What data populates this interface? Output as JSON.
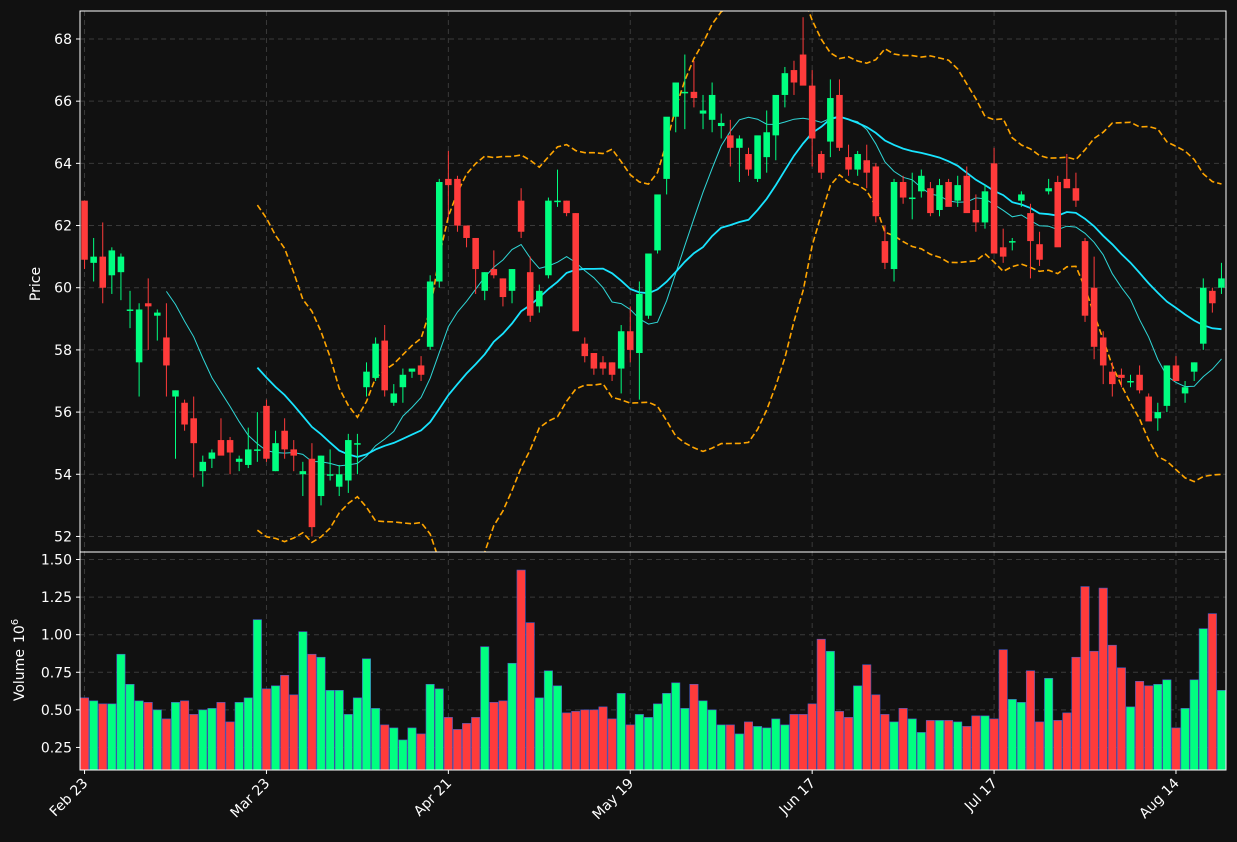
{
  "colors": {
    "background": "#111111",
    "up": "#00ff80",
    "down": "#ff3b3b",
    "vol_edge": "#4a5cc7",
    "ma_fast": "#2fd6d6",
    "ma_slow": "#18e4ff",
    "bollinger": "#ffa500",
    "frame": "#ffffff"
  },
  "chart_data": {
    "type": "candlestick",
    "ylabel": "Price",
    "volume_ylabel": "Volume",
    "volume_exponent": "6",
    "ylim": [
      51.5,
      68.9
    ],
    "yticks": [
      "52",
      "54",
      "56",
      "58",
      "60",
      "62",
      "64",
      "66",
      "68"
    ],
    "volume_ylim": [
      0.1,
      1.55
    ],
    "volume_yticks": [
      "0.25",
      "0.50",
      "0.75",
      "1.00",
      "1.25",
      "1.50"
    ],
    "xtick_labels": [
      "Feb 23",
      "Mar 23",
      "Apr 21",
      "May 19",
      "Jun 17",
      "Jul 17",
      "Aug 14"
    ],
    "xtick_index": [
      0,
      20,
      40,
      60,
      80,
      100,
      120
    ],
    "ohlcv": [
      [
        62.8,
        62.8,
        60.6,
        60.9,
        0.58
      ],
      [
        60.8,
        61.6,
        60.2,
        61.0,
        0.56
      ],
      [
        61.0,
        62.1,
        59.5,
        60.0,
        0.54
      ],
      [
        60.4,
        61.3,
        59.8,
        61.2,
        0.54
      ],
      [
        60.5,
        61.1,
        59.6,
        61.0,
        0.87
      ],
      [
        59.3,
        59.9,
        58.7,
        59.3,
        0.67
      ],
      [
        57.6,
        59.5,
        56.5,
        59.3,
        0.56
      ],
      [
        59.5,
        60.3,
        58.0,
        59.4,
        0.55
      ],
      [
        59.1,
        59.3,
        58.3,
        59.2,
        0.5
      ],
      [
        58.4,
        59.5,
        56.5,
        57.5,
        0.44
      ],
      [
        56.5,
        56.7,
        54.5,
        56.7,
        0.55
      ],
      [
        56.3,
        56.4,
        55.4,
        55.6,
        0.56
      ],
      [
        55.8,
        56.5,
        53.9,
        55.0,
        0.47
      ],
      [
        54.1,
        54.6,
        53.6,
        54.4,
        0.5
      ],
      [
        54.5,
        54.8,
        54.2,
        54.7,
        0.51
      ],
      [
        55.1,
        55.8,
        54.8,
        54.6,
        0.55
      ],
      [
        55.1,
        55.2,
        54.0,
        54.7,
        0.42
      ],
      [
        54.4,
        54.6,
        54.1,
        54.5,
        0.55
      ],
      [
        54.3,
        55.5,
        54.2,
        54.8,
        0.58
      ],
      [
        54.8,
        56.0,
        54.4,
        54.8,
        1.1
      ],
      [
        56.2,
        56.4,
        54.4,
        54.5,
        0.64
      ],
      [
        54.1,
        55.4,
        54.1,
        55.0,
        0.66
      ],
      [
        55.4,
        55.8,
        54.5,
        54.8,
        0.73
      ],
      [
        54.8,
        55.1,
        54.1,
        54.6,
        0.6
      ],
      [
        54.0,
        54.4,
        53.3,
        54.1,
        1.02
      ],
      [
        54.5,
        55.0,
        52.0,
        52.3,
        0.87
      ],
      [
        53.3,
        54.6,
        53.0,
        54.6,
        0.85
      ],
      [
        54.0,
        54.8,
        53.8,
        54.0,
        0.63
      ],
      [
        53.6,
        54.3,
        53.3,
        54.0,
        0.63
      ],
      [
        53.8,
        55.3,
        53.4,
        55.1,
        0.47
      ],
      [
        55.0,
        55.3,
        54.0,
        55.0,
        0.58
      ],
      [
        56.8,
        57.6,
        56.5,
        57.3,
        0.84
      ],
      [
        57.1,
        58.4,
        57.0,
        58.2,
        0.51
      ],
      [
        58.3,
        58.8,
        56.5,
        56.7,
        0.4
      ],
      [
        56.3,
        56.9,
        56.2,
        56.6,
        0.38
      ],
      [
        56.8,
        57.4,
        56.3,
        57.2,
        0.3
      ],
      [
        57.3,
        57.4,
        57.1,
        57.4,
        0.38
      ],
      [
        57.5,
        57.8,
        57.0,
        57.2,
        0.34
      ],
      [
        58.1,
        60.4,
        58.0,
        60.2,
        0.67
      ],
      [
        60.2,
        63.5,
        60.0,
        63.4,
        0.64
      ],
      [
        63.5,
        64.4,
        62.2,
        63.3,
        0.45
      ],
      [
        63.5,
        63.6,
        61.8,
        62.0,
        0.37
      ],
      [
        62.0,
        62.0,
        61.3,
        61.6,
        0.41
      ],
      [
        61.6,
        61.6,
        59.8,
        60.6,
        0.45
      ],
      [
        59.9,
        60.5,
        59.6,
        60.5,
        0.92
      ],
      [
        60.6,
        61.2,
        60.3,
        60.4,
        0.55
      ],
      [
        60.3,
        60.3,
        59.4,
        59.7,
        0.56
      ],
      [
        59.9,
        60.6,
        59.5,
        60.6,
        0.81
      ],
      [
        62.8,
        63.2,
        61.6,
        61.8,
        1.43
      ],
      [
        60.5,
        61.0,
        58.9,
        59.1,
        1.08
      ],
      [
        59.4,
        60.1,
        59.2,
        59.9,
        0.58
      ],
      [
        60.4,
        62.9,
        60.3,
        62.8,
        0.76
      ],
      [
        62.8,
        63.8,
        62.6,
        62.8,
        0.66
      ],
      [
        62.8,
        62.8,
        62.3,
        62.4,
        0.48
      ],
      [
        62.4,
        62.4,
        58.6,
        58.6,
        0.49
      ],
      [
        58.2,
        58.4,
        57.6,
        57.8,
        0.5
      ],
      [
        57.9,
        57.9,
        57.2,
        57.4,
        0.5
      ],
      [
        57.6,
        57.8,
        57.2,
        57.4,
        0.52
      ],
      [
        57.6,
        57.6,
        57.0,
        57.2,
        0.44
      ],
      [
        57.4,
        58.8,
        56.6,
        58.6,
        0.61
      ],
      [
        58.6,
        59.4,
        57.6,
        58.0,
        0.4
      ],
      [
        57.9,
        60.2,
        56.4,
        59.8,
        0.47
      ],
      [
        59.1,
        60.3,
        59.0,
        61.1,
        0.45
      ],
      [
        61.2,
        62.4,
        61.1,
        63.0,
        0.54
      ],
      [
        63.5,
        64.8,
        63.0,
        65.5,
        0.61
      ],
      [
        65.5,
        66.5,
        65.0,
        66.6,
        0.68
      ],
      [
        66.3,
        67.5,
        65.1,
        66.3,
        0.51
      ],
      [
        66.3,
        67.3,
        65.8,
        66.1,
        0.67
      ],
      [
        65.6,
        66.2,
        65.1,
        65.7,
        0.56
      ],
      [
        65.4,
        66.6,
        65.0,
        66.2,
        0.5
      ],
      [
        65.2,
        65.6,
        64.8,
        65.3,
        0.4
      ],
      [
        64.9,
        65.4,
        63.9,
        64.5,
        0.4
      ],
      [
        64.5,
        64.9,
        63.4,
        64.8,
        0.34
      ],
      [
        64.3,
        64.5,
        63.6,
        63.8,
        0.42
      ],
      [
        63.5,
        64.8,
        63.4,
        64.9,
        0.39
      ],
      [
        64.2,
        65.7,
        63.7,
        65.0,
        0.38
      ],
      [
        64.9,
        66.1,
        64.1,
        66.2,
        0.44
      ],
      [
        66.2,
        67.1,
        65.8,
        66.9,
        0.4
      ],
      [
        67.0,
        67.3,
        66.2,
        66.6,
        0.47
      ],
      [
        67.5,
        68.7,
        67.1,
        66.5,
        0.47
      ],
      [
        66.5,
        67.0,
        63.9,
        64.8,
        0.54
      ],
      [
        64.3,
        64.4,
        63.5,
        63.7,
        0.97
      ],
      [
        64.7,
        66.7,
        64.2,
        66.1,
        0.89
      ],
      [
        66.2,
        66.7,
        64.4,
        64.5,
        0.49
      ],
      [
        64.2,
        64.6,
        63.6,
        63.8,
        0.45
      ],
      [
        63.8,
        64.4,
        63.6,
        64.3,
        0.66
      ],
      [
        64.1,
        64.6,
        63.2,
        63.7,
        0.8
      ],
      [
        63.9,
        64.0,
        62.1,
        62.3,
        0.6
      ],
      [
        61.5,
        62.0,
        60.6,
        60.8,
        0.47
      ],
      [
        60.6,
        63.5,
        60.2,
        63.4,
        0.42
      ],
      [
        63.4,
        63.6,
        62.7,
        62.9,
        0.51
      ],
      [
        62.9,
        63.7,
        62.2,
        62.9,
        0.44
      ],
      [
        63.1,
        63.8,
        62.9,
        63.6,
        0.35
      ],
      [
        63.2,
        63.4,
        62.3,
        62.4,
        0.43
      ],
      [
        62.5,
        63.5,
        62.3,
        63.3,
        0.43
      ],
      [
        63.4,
        63.5,
        62.9,
        62.6,
        0.43
      ],
      [
        62.8,
        63.6,
        62.6,
        63.3,
        0.42
      ],
      [
        63.6,
        63.9,
        63.0,
        62.4,
        0.39
      ],
      [
        62.5,
        63.0,
        61.8,
        62.1,
        0.46
      ],
      [
        62.1,
        63.3,
        61.9,
        63.1,
        0.46
      ],
      [
        64.0,
        64.5,
        61.3,
        61.1,
        0.44
      ],
      [
        61.3,
        61.9,
        60.8,
        61.0,
        0.9
      ],
      [
        61.5,
        61.6,
        61.2,
        61.5,
        0.57
      ],
      [
        62.8,
        63.1,
        62.6,
        63.0,
        0.55
      ],
      [
        62.4,
        62.7,
        60.3,
        61.5,
        0.76
      ],
      [
        61.4,
        61.8,
        60.7,
        60.9,
        0.42
      ],
      [
        63.1,
        63.5,
        63.0,
        63.2,
        0.71
      ],
      [
        63.4,
        63.6,
        61.6,
        61.3,
        0.43
      ],
      [
        63.5,
        64.3,
        63.3,
        63.2,
        0.48
      ],
      [
        63.2,
        63.7,
        62.6,
        62.8,
        0.85
      ],
      [
        61.5,
        61.6,
        58.9,
        59.1,
        1.32
      ],
      [
        60.0,
        61.0,
        57.7,
        58.1,
        0.89
      ],
      [
        58.4,
        58.6,
        56.9,
        57.5,
        1.31
      ],
      [
        57.3,
        57.6,
        56.5,
        56.9,
        0.93
      ],
      [
        57.2,
        57.4,
        56.8,
        57.1,
        0.78
      ],
      [
        57.0,
        57.2,
        56.8,
        57.0,
        0.52
      ],
      [
        57.2,
        57.5,
        56.6,
        56.7,
        0.69
      ],
      [
        56.5,
        56.6,
        55.8,
        55.7,
        0.66
      ],
      [
        55.8,
        56.3,
        55.4,
        56.0,
        0.67
      ],
      [
        56.2,
        57.5,
        56.0,
        57.5,
        0.7
      ],
      [
        57.5,
        57.8,
        57.0,
        57.0,
        0.38
      ],
      [
        56.6,
        57.0,
        56.3,
        56.8,
        0.51
      ],
      [
        57.3,
        57.6,
        57.0,
        57.6,
        0.7
      ],
      [
        58.2,
        60.3,
        58.0,
        60.0,
        1.04
      ],
      [
        59.9,
        60.0,
        59.2,
        59.5,
        1.14
      ],
      [
        60.0,
        60.8,
        59.8,
        60.3,
        0.63
      ]
    ]
  }
}
